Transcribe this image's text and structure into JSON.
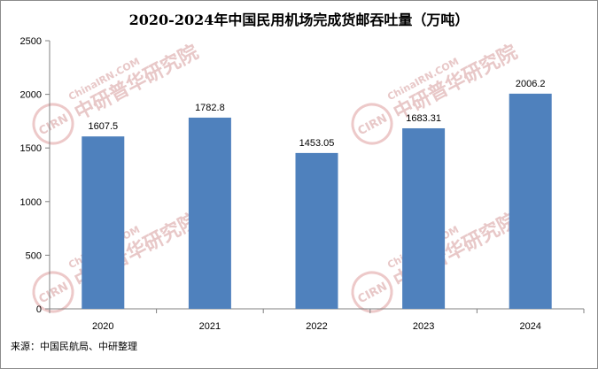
{
  "chart_data": {
    "type": "bar",
    "title": "2020-2024年中国民用机场完成货邮吞吐量（万吨）",
    "categories": [
      "2020",
      "2021",
      "2022",
      "2023",
      "2024"
    ],
    "values": [
      1607.5,
      1782.8,
      1453.05,
      1683.31,
      2006.2
    ],
    "value_labels": [
      "1607.5",
      "1782.8",
      "1453.05",
      "1683.31",
      "2006.2"
    ],
    "ylim": [
      0,
      2500
    ],
    "yticks": [
      0,
      500,
      1000,
      1500,
      2000,
      2500
    ],
    "grid": false,
    "legend": "none",
    "bar_color": "#4f81bd"
  },
  "footer": {
    "source": "来源：中国民航局、中研整理"
  },
  "watermark": {
    "text": "中研普华研究院",
    "url": "ChinaIRN.COM",
    "logo": "CIRN"
  }
}
